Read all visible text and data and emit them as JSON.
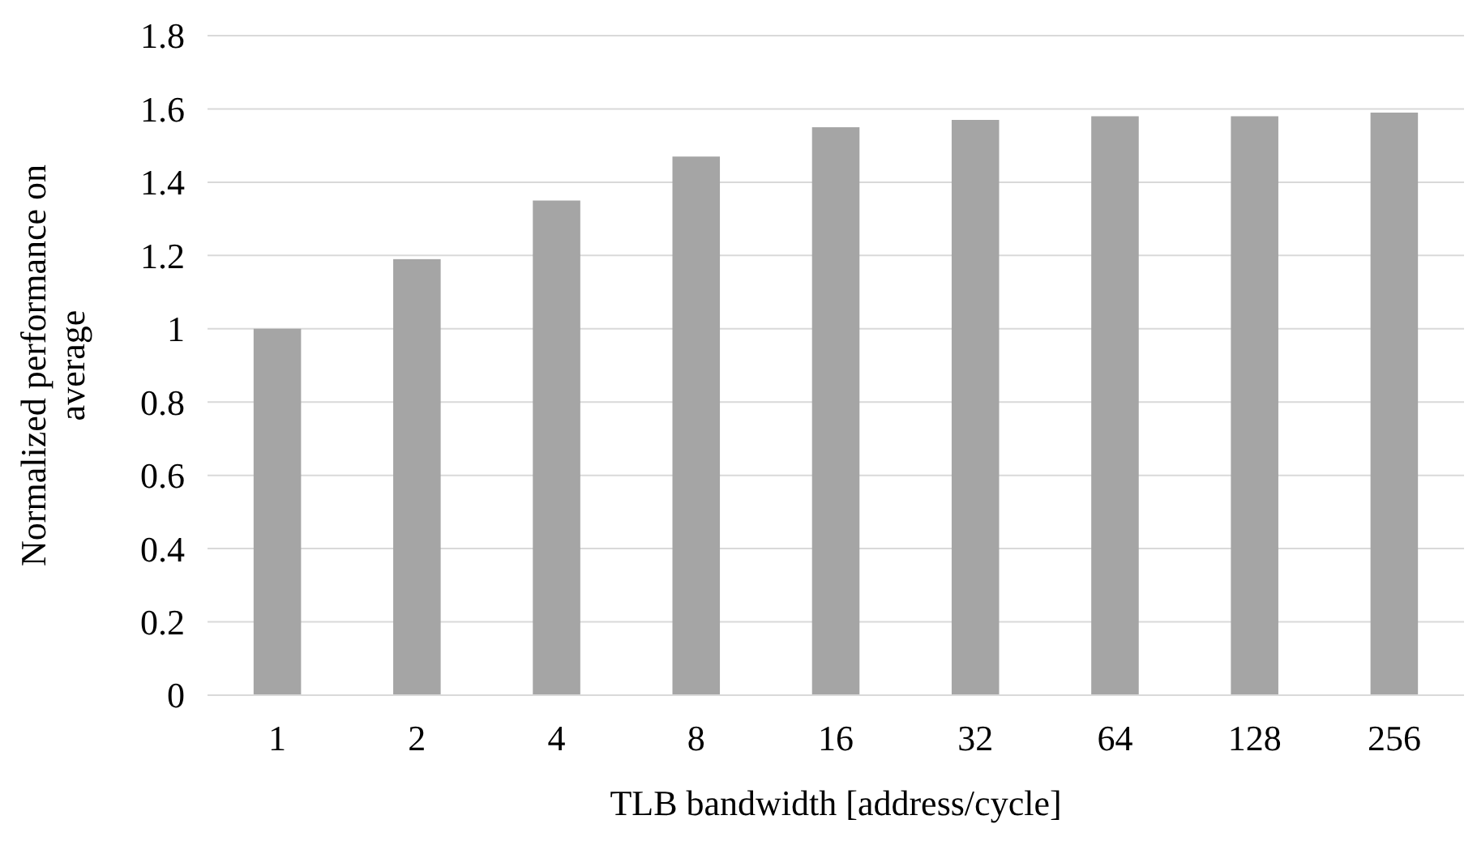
{
  "chart_data": {
    "type": "bar",
    "xlabel": "TLB bandwidth [address/cycle]",
    "ylabel": "Normalized performance on average",
    "categories": [
      "1",
      "2",
      "4",
      "8",
      "16",
      "32",
      "64",
      "128",
      "256"
    ],
    "values": [
      1.0,
      1.19,
      1.35,
      1.47,
      1.55,
      1.57,
      1.58,
      1.58,
      1.59
    ],
    "color": "#a5a5a5",
    "ylim": [
      0,
      1.8
    ],
    "yticks": [
      0,
      {
        "value": 0.2,
        "label": "0.2"
      },
      {
        "value": 0.4,
        "label": "0.4"
      },
      {
        "value": 0.6,
        "label": "0.6"
      },
      {
        "value": 0.8,
        "label": "0.8"
      },
      1,
      {
        "value": 1.2,
        "label": "1.2"
      },
      {
        "value": 1.4,
        "label": "1.4"
      },
      {
        "value": 1.6,
        "label": "1.6"
      },
      {
        "value": 1.8,
        "label": "1.8"
      }
    ],
    "grid": "y"
  }
}
